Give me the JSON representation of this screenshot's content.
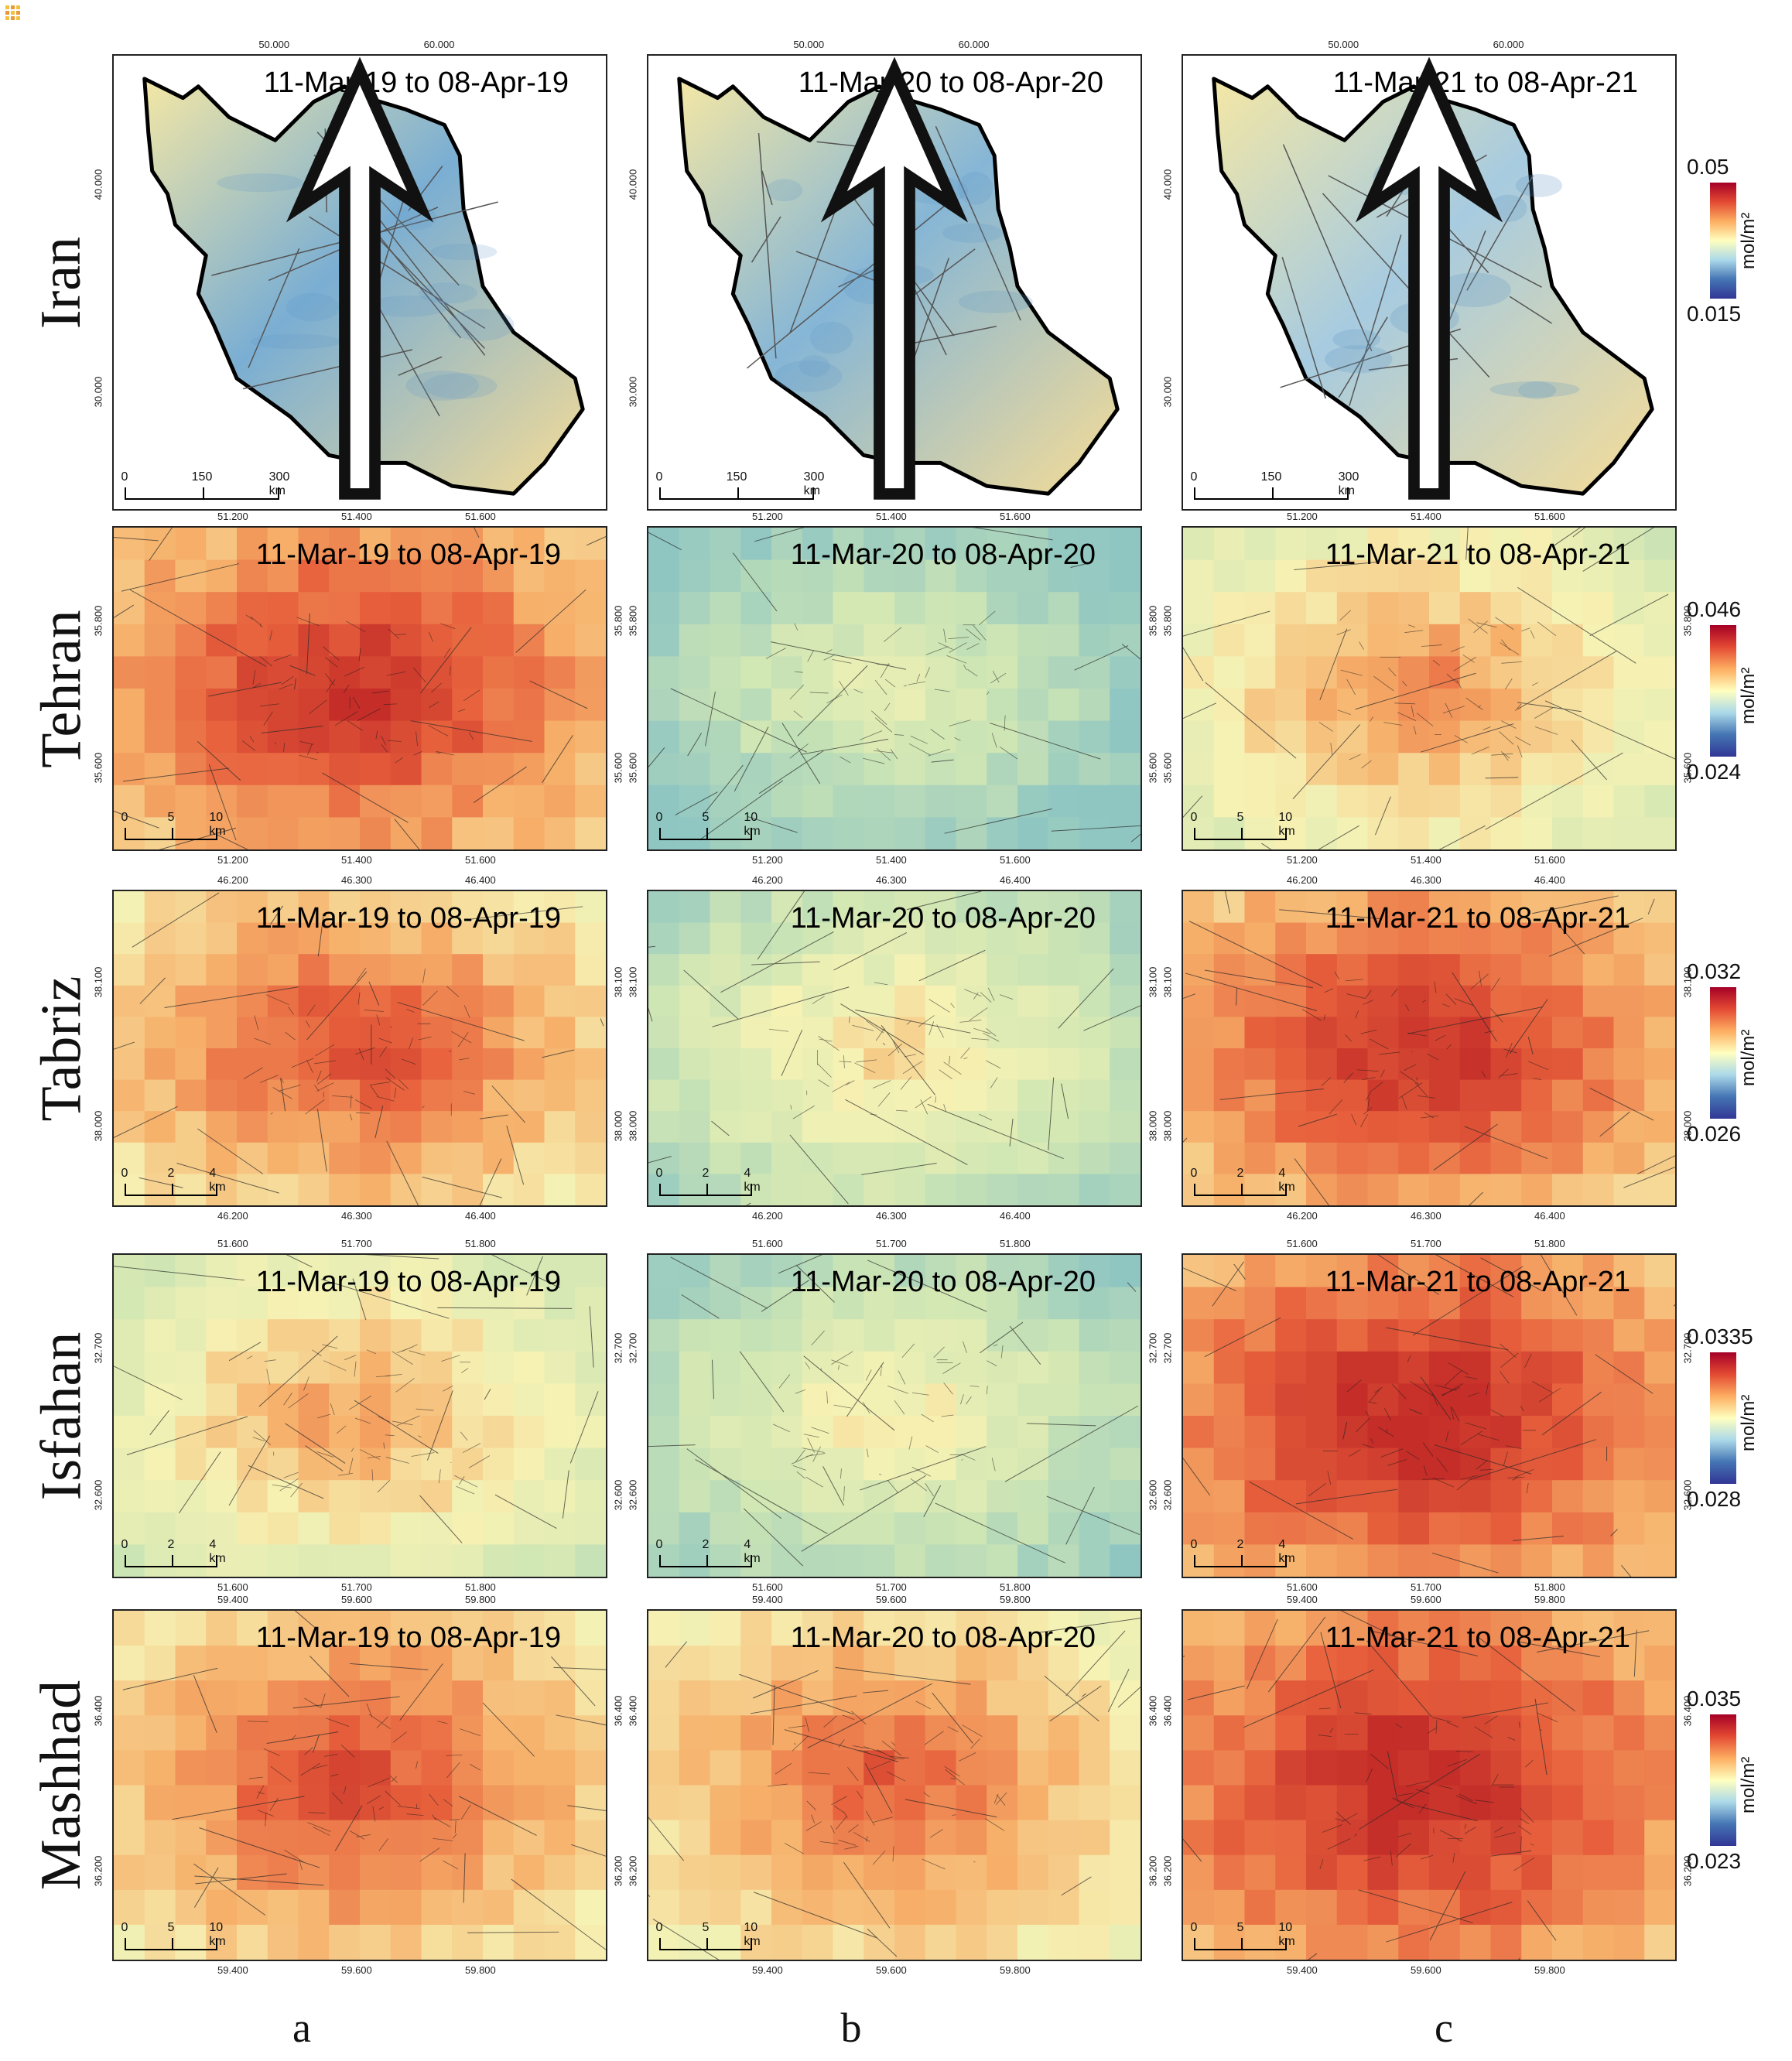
{
  "figure": {
    "column_labels": [
      "a",
      "b",
      "c"
    ],
    "periods": [
      "11-Mar-19 to 08-Apr-19",
      "11-Mar-20 to 08-Apr-20",
      "11-Mar-21 to 08-Apr-21"
    ],
    "rows": [
      {
        "region": "Iran",
        "legend": {
          "max": "0.05",
          "min": "0.015",
          "unit": "mol/m²"
        },
        "x_ticks": [
          "50.000",
          "60.000"
        ],
        "y_ticks": [
          "40.000",
          "30.000"
        ],
        "scale": [
          "0",
          "150",
          "300 km"
        ],
        "intensity": [
          0.25,
          0.3,
          0.45
        ],
        "colors": [
          "#7aaed3",
          "#86b6d6",
          "#a7cbe0"
        ]
      },
      {
        "region": "Tehran",
        "legend": {
          "max": "0.046",
          "min": "0.024",
          "unit": "mol/m²"
        },
        "x_ticks": [
          "51.200",
          "51.400",
          "51.600"
        ],
        "y_ticks": [
          "35.800",
          "35.600"
        ],
        "scale": [
          "0",
          "5",
          "10 km"
        ],
        "intensity": [
          0.8,
          0.2,
          0.55
        ],
        "colors": [
          "#d9432f",
          "#cfe6b4",
          "#f5a866"
        ]
      },
      {
        "region": "Tabriz",
        "legend": {
          "max": "0.032",
          "min": "0.026",
          "unit": "mol/m²"
        },
        "x_ticks": [
          "46.200",
          "46.300",
          "46.400"
        ],
        "y_ticks": [
          "38.100",
          "38.000"
        ],
        "scale": [
          "0",
          "2",
          "4 km"
        ],
        "intensity": [
          0.7,
          0.35,
          0.8
        ],
        "colors": [
          "#ee8a52",
          "#f3f0b6",
          "#e6603d"
        ]
      },
      {
        "region": "Isfahan",
        "legend": {
          "max": "0.0335",
          "min": "0.028",
          "unit": "mol/m²"
        },
        "x_ticks": [
          "51.600",
          "51.700",
          "51.800"
        ],
        "y_ticks": [
          "32.700",
          "32.600"
        ],
        "scale": [
          "0",
          "2",
          "4 km"
        ],
        "intensity": [
          0.5,
          0.3,
          0.85
        ],
        "colors": [
          "#e3e7a8",
          "#b6dcb2",
          "#df5a3a"
        ]
      },
      {
        "region": "Mashhad",
        "legend": {
          "max": "0.035",
          "min": "0.023",
          "unit": "mol/m²"
        },
        "x_ticks": [
          "59.400",
          "59.600",
          "59.800"
        ],
        "y_ticks": [
          "36.400",
          "36.200"
        ],
        "scale": [
          "0",
          "5",
          "10 km"
        ],
        "intensity": [
          0.7,
          0.65,
          0.85
        ],
        "colors": [
          "#ec8a50",
          "#f09a5c",
          "#e2583a"
        ]
      }
    ]
  }
}
